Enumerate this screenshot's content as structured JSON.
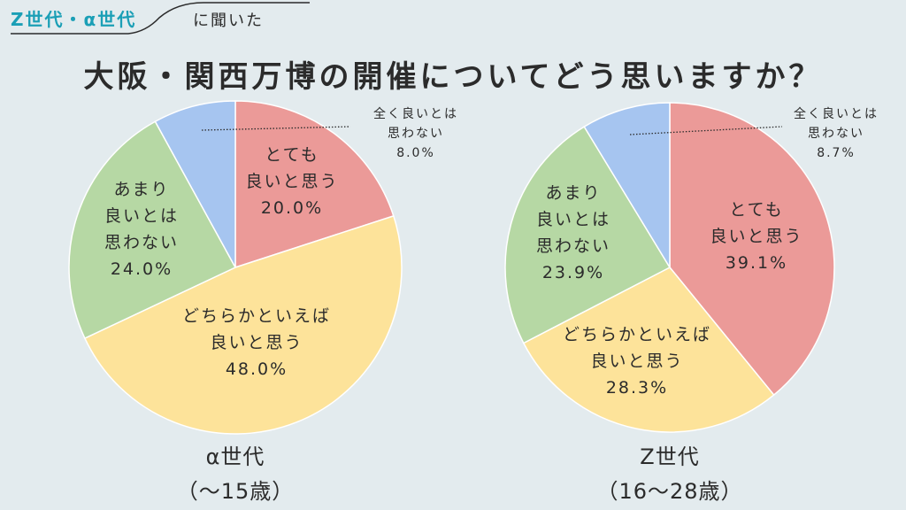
{
  "header": {
    "kicker_highlight": "Z世代・α世代",
    "kicker_rest": "に聞いた",
    "title": "大阪・関西万博の開催についてどう思いますか？",
    "accent_color": "#1b9fb6"
  },
  "chart_data": [
    {
      "type": "pie",
      "title": "α世代",
      "subtitle": "（〜15歳）",
      "slices": [
        {
          "label": "とても良いと思う",
          "value": 20.0,
          "display": "20.0%",
          "color": "#eb9a98"
        },
        {
          "label": "どちらかといえば良いと思う",
          "value": 48.0,
          "display": "48.0%",
          "color": "#fde39a"
        },
        {
          "label": "あまり良いとは思わない",
          "value": 24.0,
          "display": "24.0%",
          "color": "#b6d8a4"
        },
        {
          "label": "全く良いとは思わない",
          "value": 8.0,
          "display": "8.0%",
          "color": "#a6c5f0"
        }
      ]
    },
    {
      "type": "pie",
      "title": "Z世代",
      "subtitle": "（16〜28歳）",
      "slices": [
        {
          "label": "とても良いと思う",
          "value": 39.1,
          "display": "39.1%",
          "color": "#eb9a98"
        },
        {
          "label": "どちらかといえば良いと思う",
          "value": 28.3,
          "display": "28.3%",
          "color": "#fde39a"
        },
        {
          "label": "あまり良いとは思わない",
          "value": 23.9,
          "display": "23.9%",
          "color": "#b6d8a4"
        },
        {
          "label": "全く良いとは思わない",
          "value": 8.7,
          "display": "8.7%",
          "color": "#a6c5f0"
        }
      ]
    }
  ]
}
